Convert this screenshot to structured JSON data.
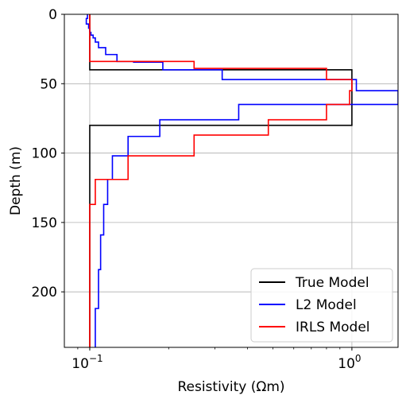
{
  "chart_data": {
    "type": "line",
    "xlabel": "Resistivity (Ωm)",
    "ylabel": "Depth (m)",
    "xscale": "log",
    "xlim": [
      0.08,
      1.5
    ],
    "ylim": [
      240,
      0
    ],
    "y_inverted": true,
    "grid": true,
    "legend_position": "bottom-right",
    "x_ticks": [
      {
        "value": 0.1,
        "base": "10",
        "exp": "−1"
      },
      {
        "value": 1.0,
        "base": "10",
        "exp": "0"
      }
    ],
    "y_ticks": [
      0,
      50,
      100,
      150,
      200
    ],
    "series": [
      {
        "name": "True Model",
        "color": "#000000",
        "points": [
          [
            0.1,
            0
          ],
          [
            0.1,
            40
          ],
          [
            1.0,
            40
          ],
          [
            1.0,
            80
          ],
          [
            0.1,
            80
          ],
          [
            0.1,
            240
          ]
        ]
      },
      {
        "name": "L2 Model",
        "color": "#0000ff",
        "points": [
          [
            0.098,
            0
          ],
          [
            0.098,
            3
          ],
          [
            0.097,
            3
          ],
          [
            0.097,
            7
          ],
          [
            0.099,
            7
          ],
          [
            0.099,
            10
          ],
          [
            0.1,
            10
          ],
          [
            0.1,
            13
          ],
          [
            0.101,
            13
          ],
          [
            0.101,
            15
          ],
          [
            0.103,
            15
          ],
          [
            0.103,
            17
          ],
          [
            0.105,
            17
          ],
          [
            0.105,
            20
          ],
          [
            0.108,
            20
          ],
          [
            0.108,
            24
          ],
          [
            0.115,
            24
          ],
          [
            0.115,
            29
          ],
          [
            0.127,
            29
          ],
          [
            0.127,
            34
          ],
          [
            0.147,
            34
          ],
          [
            0.147,
            34.5
          ],
          [
            0.19,
            34.5
          ],
          [
            0.19,
            40
          ],
          [
            0.32,
            40
          ],
          [
            0.32,
            47
          ],
          [
            1.04,
            47
          ],
          [
            1.04,
            55
          ],
          [
            1.5,
            55
          ],
          [
            1.5,
            65
          ],
          [
            0.37,
            65
          ],
          [
            0.37,
            76
          ],
          [
            0.185,
            76
          ],
          [
            0.185,
            88
          ],
          [
            0.14,
            88
          ],
          [
            0.14,
            102
          ],
          [
            0.122,
            102
          ],
          [
            0.122,
            119
          ],
          [
            0.117,
            119
          ],
          [
            0.117,
            137
          ],
          [
            0.113,
            137
          ],
          [
            0.113,
            159
          ],
          [
            0.11,
            159
          ],
          [
            0.11,
            184
          ],
          [
            0.108,
            184
          ],
          [
            0.108,
            212
          ],
          [
            0.105,
            212
          ],
          [
            0.105,
            240
          ]
        ]
      },
      {
        "name": "IRLS Model",
        "color": "#ff0000",
        "points": [
          [
            0.1,
            0
          ],
          [
            0.1,
            34
          ],
          [
            0.25,
            34
          ],
          [
            0.25,
            39
          ],
          [
            0.8,
            39
          ],
          [
            0.8,
            47
          ],
          [
            1.0,
            47
          ],
          [
            1.0,
            55
          ],
          [
            0.98,
            55
          ],
          [
            0.98,
            65
          ],
          [
            0.8,
            65
          ],
          [
            0.8,
            76
          ],
          [
            0.48,
            76
          ],
          [
            0.48,
            87
          ],
          [
            0.25,
            87
          ],
          [
            0.25,
            102
          ],
          [
            0.14,
            102
          ],
          [
            0.14,
            119
          ],
          [
            0.105,
            119
          ],
          [
            0.105,
            137
          ],
          [
            0.1,
            137
          ],
          [
            0.1,
            240
          ]
        ]
      }
    ]
  }
}
